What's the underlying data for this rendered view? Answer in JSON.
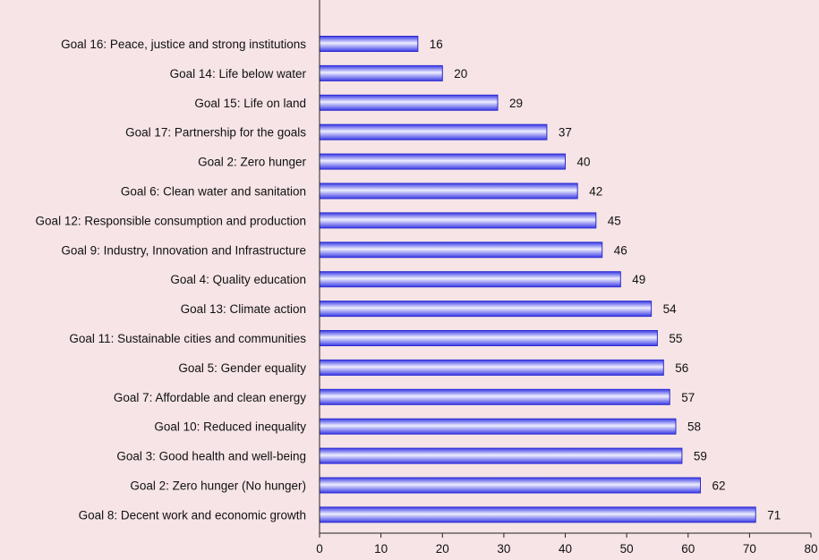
{
  "colors": {
    "background": "#f6e4e6",
    "bar_edge": "#2a2ad0",
    "bar_dark": "#3b3be6",
    "bar_light": "#eeeeff",
    "axis": "#222222"
  },
  "chart_data": {
    "type": "bar",
    "orientation": "horizontal",
    "title": "",
    "xlabel": "",
    "ylabel": "",
    "xlim": [
      0,
      80
    ],
    "xticks": [
      0,
      10,
      20,
      30,
      40,
      50,
      60,
      70,
      80
    ],
    "grid": false,
    "legend": "none",
    "categories": [
      "Goal 16: Peace, justice and strong institutions",
      "Goal 14: Life below water",
      "Goal 15: Life on land",
      "Goal 17: Partnership for the goals",
      "Goal 2: Zero hunger",
      "Goal 6: Clean water and sanitation",
      "Goal 12: Responsible consumption and production",
      "Goal 9: Industry, Innovation and Infrastructure",
      "Goal 4: Quality education",
      "Goal 13: Climate action",
      "Goal 11: Sustainable cities and communities",
      "Goal 5: Gender equality",
      "Goal 7: Affordable and clean energy",
      "Goal 10: Reduced inequality",
      "Goal 3: Good health and well-being",
      "Goal 2: Zero hunger (No hunger)",
      "Goal 8: Decent work and economic growth"
    ],
    "values": [
      16,
      20,
      29,
      37,
      40,
      42,
      45,
      46,
      49,
      54,
      55,
      56,
      57,
      58,
      59,
      62,
      71
    ]
  }
}
